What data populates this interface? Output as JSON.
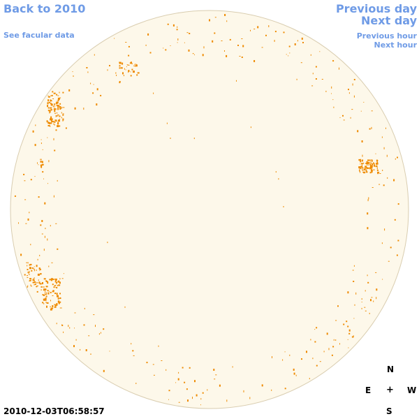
{
  "nav": {
    "back_label": "Back to 2010",
    "facular_label": "See facular data",
    "prev_day_label": "Previous day",
    "next_day_label": "Next day",
    "prev_hour_label": "Previous hour",
    "next_hour_label": "Next hour"
  },
  "compass": {
    "n": "N",
    "e": "E",
    "w": "W",
    "s": "S",
    "center": "+"
  },
  "timestamp": "2010-12-03T06:58:57",
  "colors": {
    "link": "#6f9be6",
    "disk_fill": "#fdf8ea",
    "disk_border": "#d9cdb0",
    "facula": "#ee8a00"
  },
  "icons": {
    "sun": "solar-disk-icon"
  }
}
